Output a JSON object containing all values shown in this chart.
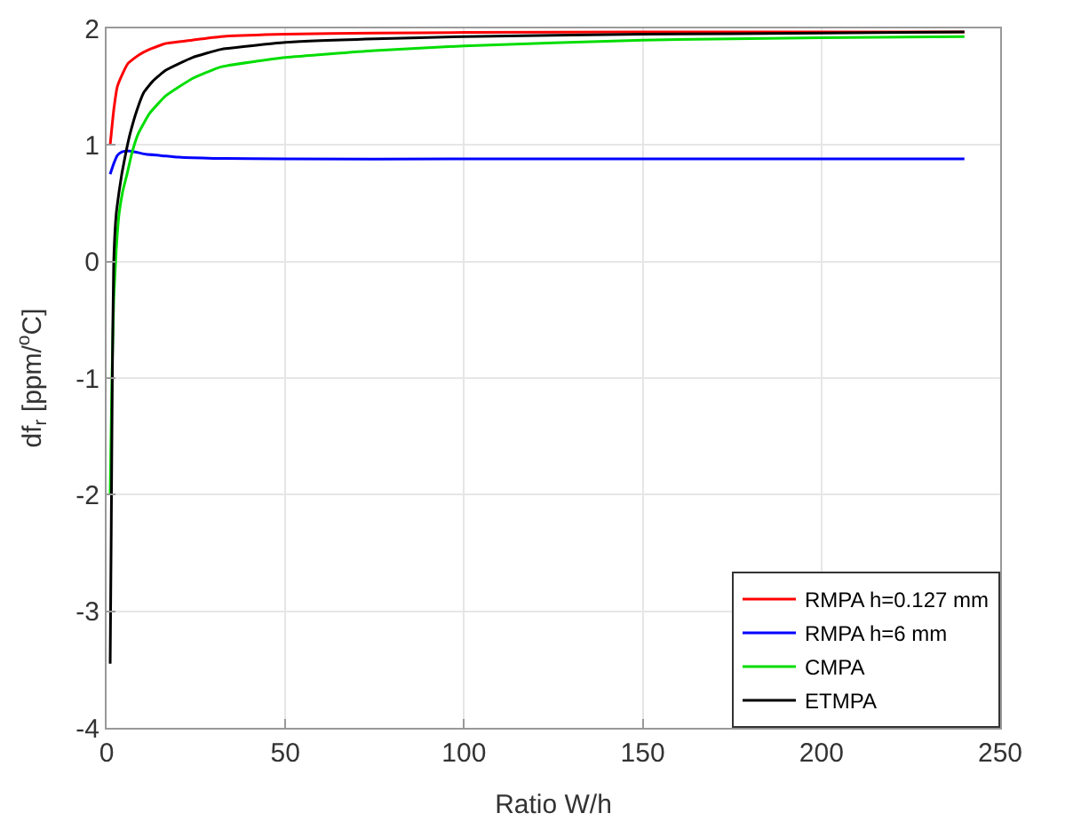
{
  "chart_data": {
    "type": "line",
    "xlabel": "Ratio W/h",
    "ylabel": "df$_{r}$ [ppm/$^{o}$C]",
    "xlim": [
      0,
      250
    ],
    "xticks": [
      0,
      50,
      100,
      150,
      200,
      250
    ],
    "ylim": [
      -4,
      2
    ],
    "yticks": [
      -4,
      -3,
      -2,
      -1,
      0,
      1,
      2
    ],
    "grid": true,
    "legend": "bottom right",
    "marker": "none",
    "line_style": "solid",
    "series": [
      {
        "name": "RMPA h=0.127 mm",
        "color": "#ff0000",
        "x": [
          1,
          2,
          3,
          4.3,
          6,
          8.9,
          12,
          16.5,
          24,
          32,
          50,
          75,
          100,
          150,
          200,
          240
        ],
        "values": [
          1.0,
          1.3,
          1.5,
          1.6,
          1.7,
          1.77,
          1.82,
          1.87,
          1.9,
          1.93,
          1.95,
          1.96,
          1.965,
          1.97,
          1.97,
          1.97
        ]
      },
      {
        "name": "RMPA h=6 mm",
        "color": "#0000ff",
        "x": [
          1,
          2,
          3,
          4.3,
          5.8,
          8,
          11,
          15,
          20,
          30,
          50,
          100,
          150,
          200,
          240
        ],
        "values": [
          0.75,
          0.84,
          0.91,
          0.94,
          0.95,
          0.94,
          0.92,
          0.91,
          0.895,
          0.885,
          0.88,
          0.88,
          0.88,
          0.88,
          0.88
        ]
      },
      {
        "name": "CMPA",
        "color": "#00dd00",
        "x": [
          1,
          1.5,
          2,
          2.7,
          3.5,
          4.5,
          5.8,
          7,
          8.9,
          12,
          16.5,
          24,
          32,
          50,
          75,
          100,
          150,
          200,
          240
        ],
        "values": [
          -2.0,
          -1.0,
          -0.33,
          0.1,
          0.41,
          0.6,
          0.76,
          0.92,
          1.1,
          1.27,
          1.42,
          1.57,
          1.67,
          1.75,
          1.81,
          1.85,
          1.9,
          1.92,
          1.93
        ]
      },
      {
        "name": "ETMPA",
        "color": "#000000",
        "x": [
          1,
          1.3,
          1.6,
          2,
          2.7,
          3.5,
          4.3,
          5.5,
          6.6,
          8.5,
          10.4,
          13,
          16.5,
          24,
          32,
          50,
          75,
          100,
          150,
          200,
          240
        ],
        "values": [
          -3.45,
          -2.3,
          -1.0,
          0.0,
          0.41,
          0.6,
          0.76,
          0.95,
          1.1,
          1.3,
          1.45,
          1.55,
          1.64,
          1.75,
          1.82,
          1.88,
          1.91,
          1.93,
          1.95,
          1.96,
          1.97
        ]
      }
    ]
  }
}
